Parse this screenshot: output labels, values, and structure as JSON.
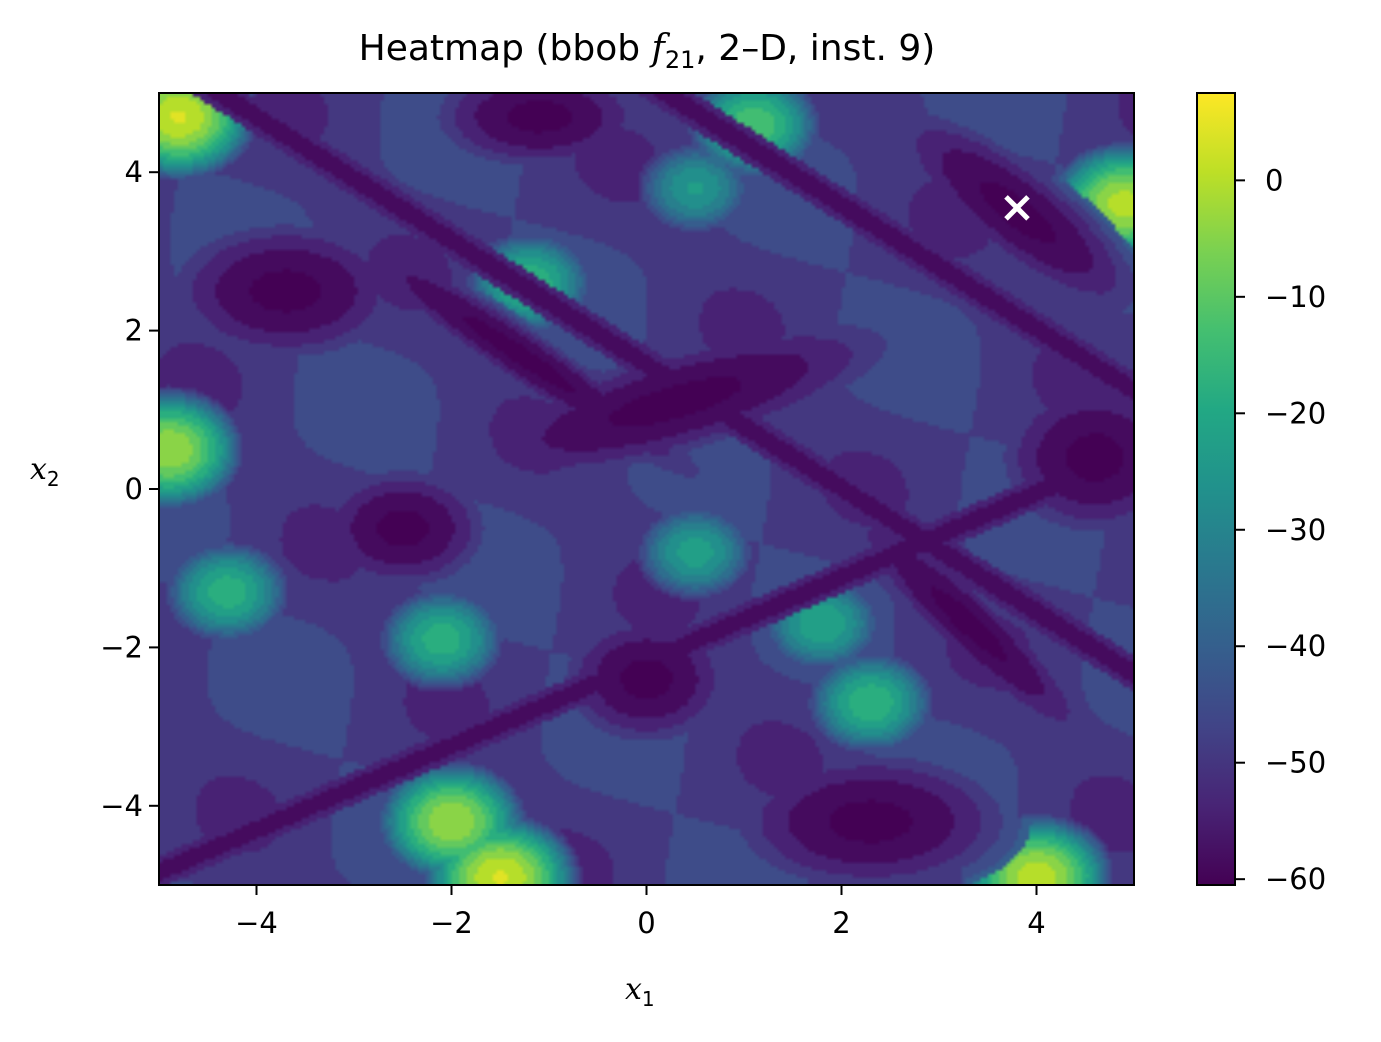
{
  "chart_data": {
    "type": "heatmap",
    "title_prefix": "Heatmap (bbob ",
    "title_func_symbol": "f",
    "title_func_subscript": "21",
    "title_suffix": ", 2–D, inst. 9)",
    "xlabel_symbol": "x",
    "xlabel_subscript": "1",
    "ylabel_symbol": "x",
    "ylabel_subscript": "2",
    "xlim": [
      -5,
      5
    ],
    "ylim": [
      -5,
      5
    ],
    "x_ticks": [
      -4,
      -2,
      0,
      2,
      4
    ],
    "y_ticks": [
      -4,
      -2,
      0,
      2,
      4
    ],
    "x_tick_labels": [
      "−4",
      "−2",
      "0",
      "2",
      "4"
    ],
    "y_tick_labels": [
      "−4",
      "−2",
      "0",
      "2",
      "4"
    ],
    "colorbar": {
      "range": [
        -60.5,
        7.5
      ],
      "ticks": [
        0,
        -10,
        -20,
        -30,
        -40,
        -50,
        -60
      ],
      "tick_labels": [
        "0",
        "−10",
        "−20",
        "−30",
        "−40",
        "−50",
        "−60"
      ],
      "colormap": "viridis"
    },
    "marker": {
      "symbol": "×",
      "x": 3.8,
      "y": 3.55,
      "color": "#ffffff"
    },
    "grid": false,
    "minima": [
      {
        "x": 3.8,
        "y": 3.5,
        "a": 1.6,
        "b": 0.5,
        "angle": -45
      },
      {
        "x": -3.7,
        "y": 2.5,
        "a": 1.1,
        "b": 0.8,
        "angle": 0
      },
      {
        "x": -1.1,
        "y": 4.7,
        "a": 1.0,
        "b": 0.6,
        "angle": 0
      },
      {
        "x": 0.3,
        "y": 1.1,
        "a": 2.2,
        "b": 0.6,
        "angle": 20
      },
      {
        "x": -2.5,
        "y": -0.5,
        "a": 0.8,
        "b": 0.7,
        "angle": 0
      },
      {
        "x": 0.0,
        "y": -2.4,
        "a": 0.8,
        "b": 0.75,
        "angle": 0
      },
      {
        "x": 2.3,
        "y": -4.2,
        "a": 1.3,
        "b": 0.8,
        "angle": 0
      },
      {
        "x": 4.6,
        "y": 0.4,
        "a": 0.9,
        "b": 0.9,
        "angle": 0
      },
      {
        "x": 3.3,
        "y": -1.7,
        "a": 1.8,
        "b": 0.35,
        "angle": -50
      },
      {
        "x": -1.3,
        "y": 1.7,
        "a": 2.3,
        "b": 0.3,
        "angle": -40
      }
    ],
    "ridges": [
      {
        "x": -4.0,
        "y": 4.7,
        "angle": -38
      },
      {
        "x": 1.6,
        "y": 3.9,
        "angle": -38
      },
      {
        "x": -2.3,
        "y": -3.4,
        "angle": 28
      }
    ],
    "highs": [
      {
        "x": -4.8,
        "y": 4.7,
        "v": 5
      },
      {
        "x": -4.9,
        "y": 0.5,
        "v": 0
      },
      {
        "x": 4.9,
        "y": 3.6,
        "v": 2
      },
      {
        "x": -1.5,
        "y": -4.9,
        "v": 5
      },
      {
        "x": 4.0,
        "y": -4.9,
        "v": 3
      },
      {
        "x": -2.0,
        "y": -4.2,
        "v": 0
      },
      {
        "x": -1.2,
        "y": 2.6,
        "v": -14
      },
      {
        "x": 1.1,
        "y": 4.6,
        "v": -10
      },
      {
        "x": -4.3,
        "y": -1.3,
        "v": -15
      },
      {
        "x": 2.3,
        "y": -2.7,
        "v": -14
      },
      {
        "x": 1.8,
        "y": -1.7,
        "v": -18
      },
      {
        "x": -2.1,
        "y": -1.9,
        "v": -15
      },
      {
        "x": 0.5,
        "y": 3.8,
        "v": -22
      },
      {
        "x": 0.5,
        "y": -0.8,
        "v": -20
      }
    ]
  }
}
